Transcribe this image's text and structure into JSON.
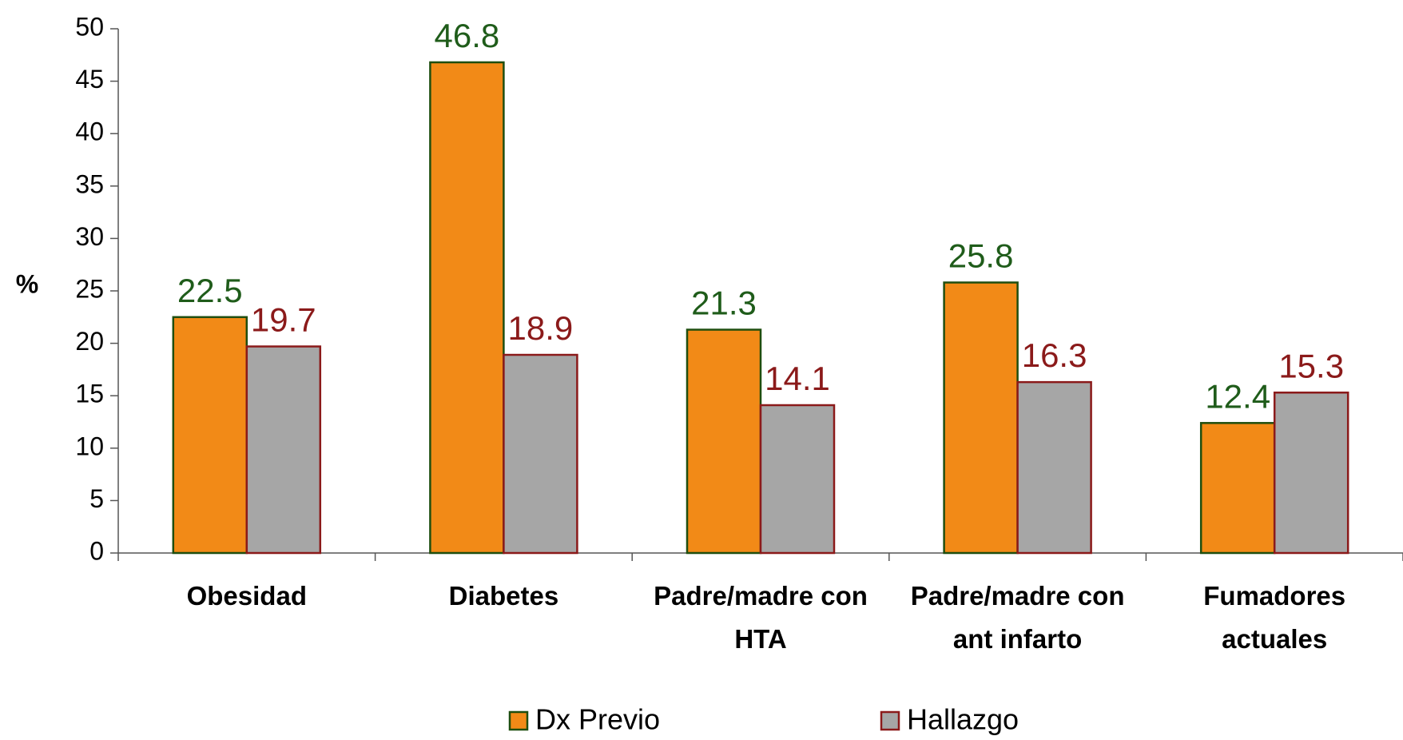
{
  "chart_data": {
    "type": "bar",
    "y_label": "%",
    "categories": [
      "Obesidad",
      "Diabetes",
      "Padre/madre con\nHTA",
      "Padre/madre con\nant infarto",
      "Fumadores\nactuales"
    ],
    "series": [
      {
        "name": "Dx Previo",
        "color": "#f28a17",
        "stroke": "#1f4e0f",
        "label_color": "#1f5c1a",
        "values": [
          22.5,
          46.8,
          21.3,
          25.8,
          12.4
        ]
      },
      {
        "name": "Hallazgo",
        "color": "#a6a6a6",
        "stroke": "#8b1a1a",
        "label_color": "#8b1a1a",
        "values": [
          19.7,
          18.9,
          14.1,
          16.3,
          15.3
        ]
      }
    ],
    "ylim": [
      0,
      50
    ],
    "yticks": [
      0,
      5,
      10,
      15,
      20,
      25,
      30,
      35,
      40,
      45,
      50
    ],
    "legend": "bottom"
  }
}
